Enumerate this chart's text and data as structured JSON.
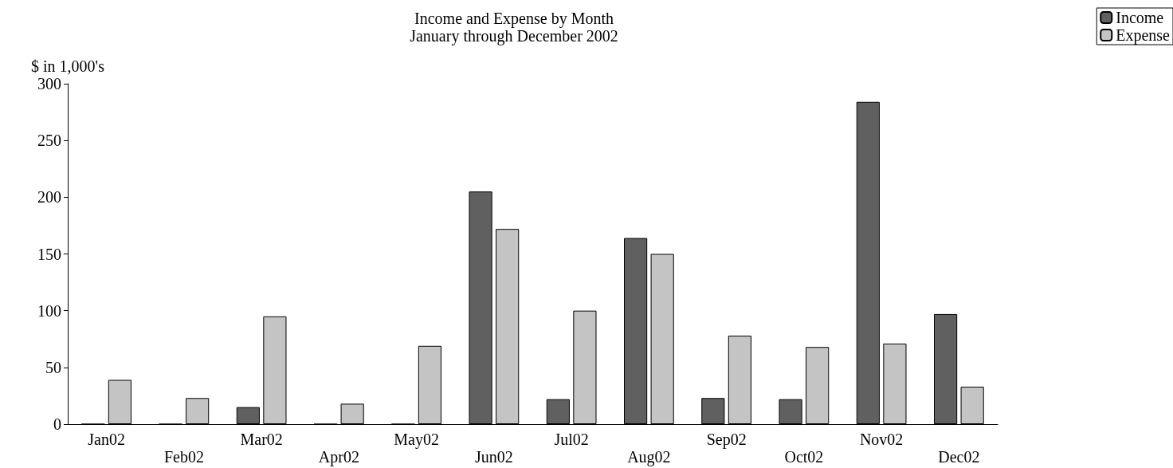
{
  "chart_data": {
    "type": "bar",
    "title": "Income and Expense by Month",
    "subtitle": "January through December 2002",
    "ylabel": "$ in 1,000's",
    "categories": [
      "Jan02",
      "Feb02",
      "Mar02",
      "Apr02",
      "May02",
      "Jun02",
      "Jul02",
      "Aug02",
      "Sep02",
      "Oct02",
      "Nov02",
      "Dec02"
    ],
    "series": [
      {
        "name": "Income",
        "color": "#606060",
        "values": [
          0,
          0,
          15,
          0,
          0,
          205,
          22,
          164,
          23,
          22,
          284,
          97
        ]
      },
      {
        "name": "Expense",
        "color": "#c4c4c4",
        "values": [
          39,
          23,
          95,
          18,
          69,
          172,
          100,
          150,
          78,
          68,
          71,
          33
        ]
      }
    ],
    "ylim": [
      0,
      300
    ],
    "yticks": [
      0,
      50,
      100,
      150,
      200,
      250,
      300
    ],
    "grid": false,
    "legend": "top right"
  }
}
